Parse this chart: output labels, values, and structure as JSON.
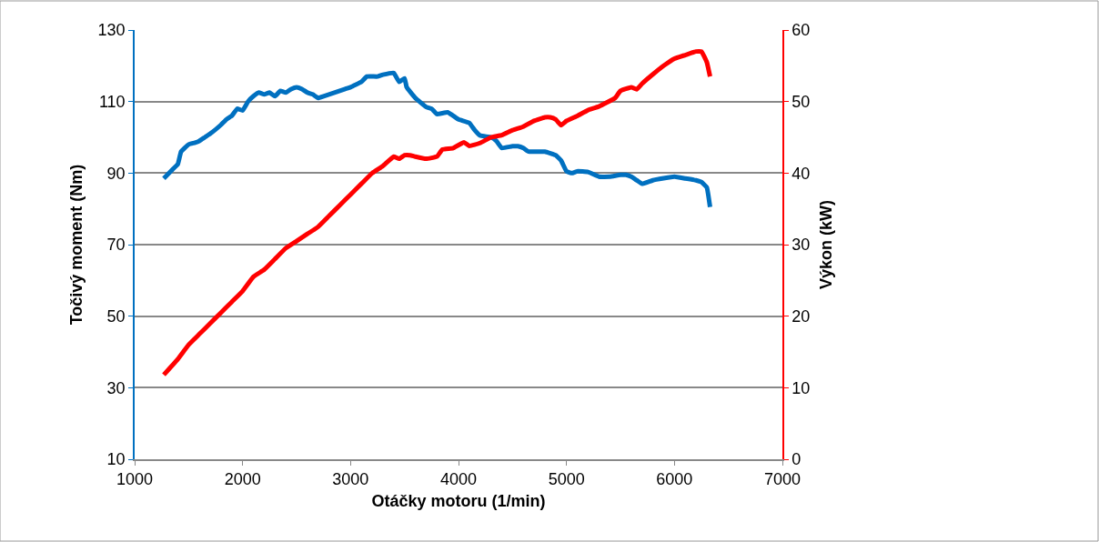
{
  "chart_data": {
    "type": "line",
    "xlabel": "Otáčky motoru (1/min)",
    "ylabel": "Točivý moment (Nm)",
    "y2label": "Výkon (kW)",
    "xlim": [
      1000,
      7000
    ],
    "xticks": [
      1000,
      2000,
      3000,
      4000,
      5000,
      6000,
      7000
    ],
    "ylim": [
      10,
      130
    ],
    "yticks": [
      10,
      30,
      50,
      70,
      90,
      110,
      130
    ],
    "y2lim": [
      0,
      60
    ],
    "y2ticks": [
      0,
      10,
      20,
      30,
      40,
      50,
      60
    ],
    "grid": "y",
    "marker": "none",
    "line_style": "solid",
    "series": [
      {
        "color": "#0070c0",
        "x": [
          1270,
          1350,
          1400,
          1430,
          1500,
          1560,
          1600,
          1650,
          1700,
          1800,
          1850,
          1900,
          1950,
          2000,
          2050,
          2100,
          2150,
          2200,
          2250,
          2300,
          2350,
          2400,
          2450,
          2500,
          2550,
          2600,
          2650,
          2700,
          2750,
          2800,
          2900,
          2950,
          3000,
          3100,
          3150,
          3250,
          3300,
          3400,
          3450,
          3500,
          3520,
          3600,
          3700,
          3750,
          3800,
          3900,
          4000,
          4100,
          4150,
          4200,
          4300,
          4350,
          4400,
          4500,
          4550,
          4600,
          4650,
          4800,
          4900,
          4950,
          5000,
          5050,
          5100,
          5200,
          5300,
          5400,
          5500,
          5550,
          5600,
          5650,
          5700,
          5800,
          6000,
          6100,
          6200,
          6250,
          6300,
          6330
        ],
        "values": [
          88.5,
          91,
          92.5,
          96,
          98,
          98.5,
          99,
          100,
          101,
          103.5,
          105,
          106,
          108,
          107.5,
          110,
          111.5,
          112.5,
          112,
          112.5,
          111.5,
          113,
          112.5,
          113.5,
          114,
          113.5,
          112.5,
          112,
          111,
          111.5,
          112,
          113,
          113.5,
          114,
          115.5,
          117,
          117,
          117.5,
          118,
          115.5,
          116.5,
          114,
          111,
          108.5,
          108,
          106.5,
          107,
          105,
          104,
          102,
          100.5,
          100,
          99,
          97,
          97.5,
          97.5,
          97,
          96,
          96,
          95,
          93.5,
          90.5,
          90,
          90.5,
          90.3,
          89,
          89,
          89.5,
          89.5,
          89,
          88,
          87,
          88,
          89,
          88.5,
          88,
          87.5,
          86,
          80.5
        ]
      },
      {
        "color": "#ff0000",
        "axis": "y2",
        "x": [
          1270,
          1400,
          1500,
          1600,
          1700,
          1800,
          1900,
          2000,
          2100,
          2200,
          2300,
          2400,
          2500,
          2600,
          2700,
          2800,
          2900,
          3000,
          3100,
          3200,
          3300,
          3400,
          3450,
          3500,
          3550,
          3600,
          3700,
          3800,
          3850,
          3950,
          4050,
          4100,
          4200,
          4300,
          4400,
          4500,
          4600,
          4700,
          4800,
          4850,
          4900,
          4950,
          5000,
          5100,
          5200,
          5300,
          5450,
          5500,
          5600,
          5650,
          5700,
          5800,
          5900,
          6000,
          6100,
          6200,
          6250,
          6300,
          6330
        ],
        "values": [
          11.8,
          14,
          16,
          17.5,
          19,
          20.5,
          22,
          23.5,
          25.5,
          26.5,
          28,
          29.5,
          30.5,
          31.5,
          32.5,
          34,
          35.5,
          37,
          38.5,
          40,
          41,
          42.3,
          42,
          42.5,
          42.5,
          42.3,
          42,
          42.3,
          43.3,
          43.5,
          44.3,
          43.8,
          44.2,
          45,
          45.3,
          46,
          46.5,
          47.3,
          47.8,
          47.8,
          47.5,
          46.7,
          47.3,
          48,
          48.8,
          49.3,
          50.5,
          51.5,
          52,
          51.7,
          52.5,
          53.8,
          55,
          56,
          56.5,
          57,
          57,
          55.5,
          53.5
        ]
      }
    ]
  }
}
